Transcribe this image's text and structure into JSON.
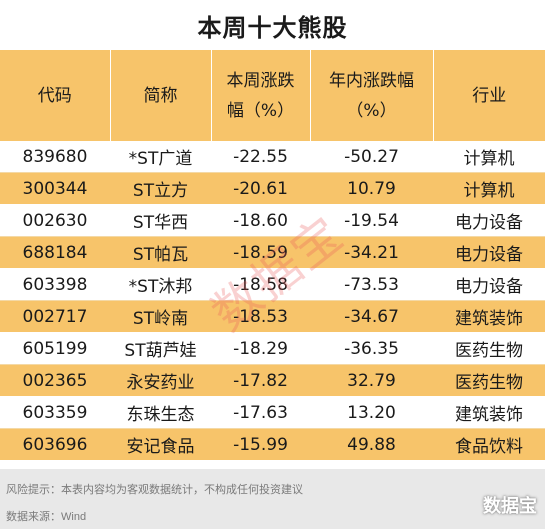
{
  "title": "本周十大熊股",
  "headers": [
    "代码",
    "简称",
    "本周涨跌幅（%）",
    "年内涨跌幅（%）",
    "行业"
  ],
  "header_lines": [
    [
      "代码"
    ],
    [
      "简称"
    ],
    [
      "本周涨跌",
      "幅（%）"
    ],
    [
      "年内涨跌幅",
      "（%）"
    ],
    [
      "行业"
    ]
  ],
  "rows": [
    [
      "839680",
      "*ST广道",
      "-22.55",
      "-50.27",
      "计算机"
    ],
    [
      "300344",
      "ST立方",
      "-20.61",
      "10.79",
      "计算机"
    ],
    [
      "002630",
      "ST华西",
      "-18.60",
      "-19.54",
      "电力设备"
    ],
    [
      "688184",
      "ST帕瓦",
      "-18.59",
      "-34.21",
      "电力设备"
    ],
    [
      "603398",
      "*ST沐邦",
      "-18.58",
      "-73.53",
      "电力设备"
    ],
    [
      "002717",
      "ST岭南",
      "-18.53",
      "-34.67",
      "建筑装饰"
    ],
    [
      "605199",
      "ST葫芦娃",
      "-18.29",
      "-36.35",
      "医药生物"
    ],
    [
      "002365",
      "永安药业",
      "-17.82",
      "32.79",
      "医药生物"
    ],
    [
      "603359",
      "东珠生态",
      "-17.63",
      "13.20",
      "建筑装饰"
    ],
    [
      "603696",
      "安记食品",
      "-15.99",
      "49.88",
      "食品饮料"
    ]
  ],
  "footer": {
    "risk_note": "风险提示：本表内容均为客观数据统计，不构成任何投资建议",
    "source": "数据来源：Wind"
  },
  "watermark": "数据宝",
  "brand": "数据宝",
  "colors": {
    "header_bg": "#f7c46a",
    "stripe_bg": "#f7c46a",
    "footer_bg": "#e8e8e8"
  }
}
